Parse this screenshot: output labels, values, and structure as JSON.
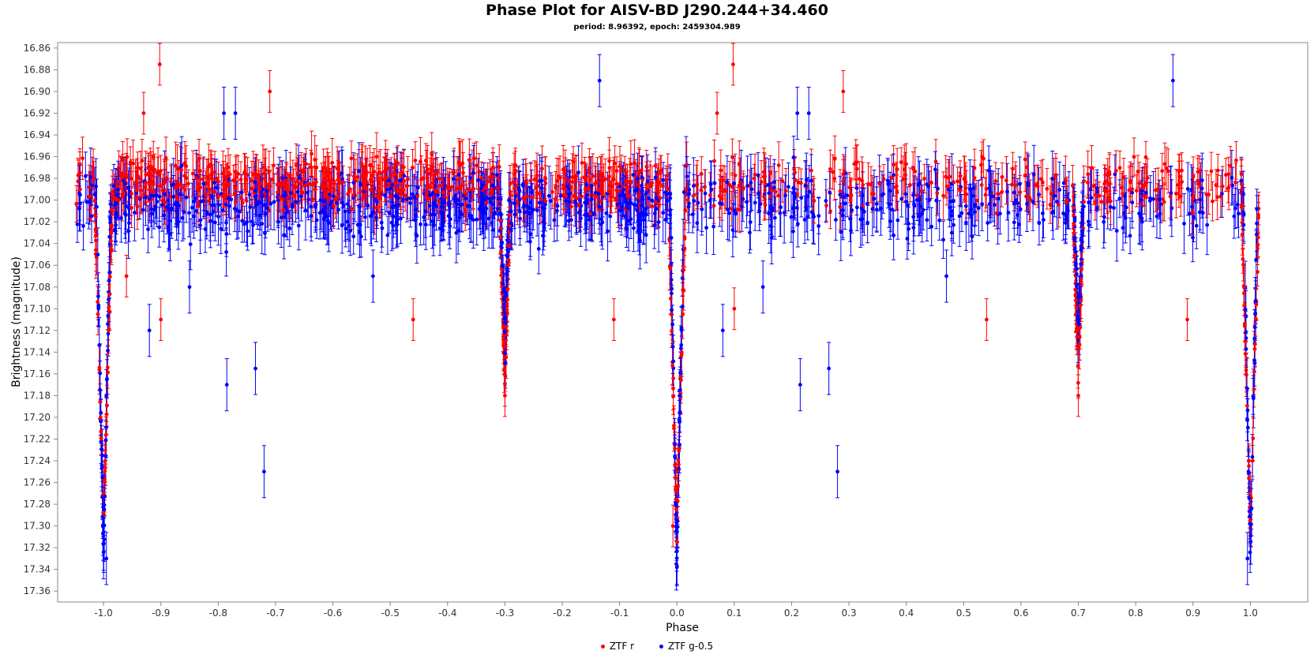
{
  "chart_data": {
    "type": "scatter",
    "title": "Phase Plot for AISV-BD J290.244+34.460",
    "subtitle": "period: 8.96392, epoch: 2459304.989",
    "xlabel": "Phase",
    "ylabel": "Brightness (magnitude)",
    "xlim": [
      -1.08,
      1.1
    ],
    "ylim": [
      17.37,
      16.855
    ],
    "y_inverted": true,
    "x_ticks": [
      "-1.0",
      "-0.9",
      "-0.8",
      "-0.7",
      "-0.6",
      "-0.5",
      "-0.4",
      "-0.3",
      "-0.2",
      "-0.1",
      "0.0",
      "0.1",
      "0.2",
      "0.3",
      "0.4",
      "0.5",
      "0.6",
      "0.7",
      "0.8",
      "0.9",
      "1.0"
    ],
    "y_ticks": [
      "16.86",
      "16.88",
      "16.90",
      "16.92",
      "16.94",
      "16.96",
      "16.98",
      "17.00",
      "17.02",
      "17.04",
      "17.06",
      "17.08",
      "17.10",
      "17.12",
      "17.14",
      "17.16",
      "17.18",
      "17.20",
      "17.22",
      "17.24",
      "17.26",
      "17.28",
      "17.30",
      "17.32",
      "17.34",
      "17.36"
    ],
    "grid": false,
    "legend_position": "bottom",
    "period_phase_folded": true,
    "series": [
      {
        "name": "ZTF r",
        "color": "#ff0000",
        "baseline_mag": 16.985,
        "scatter": 0.022,
        "errorbar": 0.016,
        "primary_eclipse": {
          "phase": 0.0,
          "depth_mag": 17.3,
          "width": 0.016
        },
        "secondary_eclipse": {
          "phase": 0.7,
          "depth_mag": 17.17,
          "width": 0.01
        },
        "points": [
          {
            "x": -0.902,
            "y": 16.875
          },
          {
            "x": 0.098,
            "y": 16.875
          },
          {
            "x": -0.93,
            "y": 16.92
          },
          {
            "x": 0.07,
            "y": 16.92
          },
          {
            "x": -0.71,
            "y": 16.9
          },
          {
            "x": 0.29,
            "y": 16.9
          },
          {
            "x": -0.96,
            "y": 17.07
          },
          {
            "x": -0.46,
            "y": 17.11
          },
          {
            "x": 0.54,
            "y": 17.11
          },
          {
            "x": -0.11,
            "y": 17.11
          },
          {
            "x": 0.89,
            "y": 17.11
          },
          {
            "x": 0.1,
            "y": 17.1
          },
          {
            "x": -0.9,
            "y": 17.11
          },
          {
            "x": -0.3,
            "y": 17.18
          },
          {
            "x": 0.7,
            "y": 17.18
          },
          {
            "x": -1.0,
            "y": 17.27
          },
          {
            "x": 1.0,
            "y": 17.27
          },
          {
            "x": -0.007,
            "y": 17.3
          }
        ]
      },
      {
        "name": "ZTF g-0.5",
        "color": "#0000ff",
        "baseline_mag": 17.005,
        "scatter": 0.028,
        "errorbar": 0.02,
        "primary_eclipse": {
          "phase": 0.0,
          "depth_mag": 17.33,
          "width": 0.012
        },
        "secondary_eclipse": {
          "phase": 0.7,
          "depth_mag": 17.12,
          "width": 0.008
        },
        "points": [
          {
            "x": -0.135,
            "y": 16.89
          },
          {
            "x": 0.865,
            "y": 16.89
          },
          {
            "x": -0.79,
            "y": 16.92
          },
          {
            "x": 0.21,
            "y": 16.92
          },
          {
            "x": -0.77,
            "y": 16.92
          },
          {
            "x": 0.23,
            "y": 16.92
          },
          {
            "x": -0.92,
            "y": 17.12
          },
          {
            "x": 0.08,
            "y": 17.12
          },
          {
            "x": -0.785,
            "y": 17.17
          },
          {
            "x": 0.215,
            "y": 17.17
          },
          {
            "x": -0.735,
            "y": 17.155
          },
          {
            "x": 0.265,
            "y": 17.155
          },
          {
            "x": -0.72,
            "y": 17.25
          },
          {
            "x": 0.28,
            "y": 17.25
          },
          {
            "x": -0.85,
            "y": 17.08
          },
          {
            "x": 0.15,
            "y": 17.08
          },
          {
            "x": -0.53,
            "y": 17.07
          },
          {
            "x": 0.47,
            "y": 17.07
          },
          {
            "x": -1.002,
            "y": 17.235
          },
          {
            "x": -0.995,
            "y": 17.33
          },
          {
            "x": 0.995,
            "y": 17.33
          },
          {
            "x": -0.001,
            "y": 17.335
          },
          {
            "x": 0.005,
            "y": 17.18
          },
          {
            "x": -0.995,
            "y": 17.18
          }
        ]
      }
    ]
  }
}
